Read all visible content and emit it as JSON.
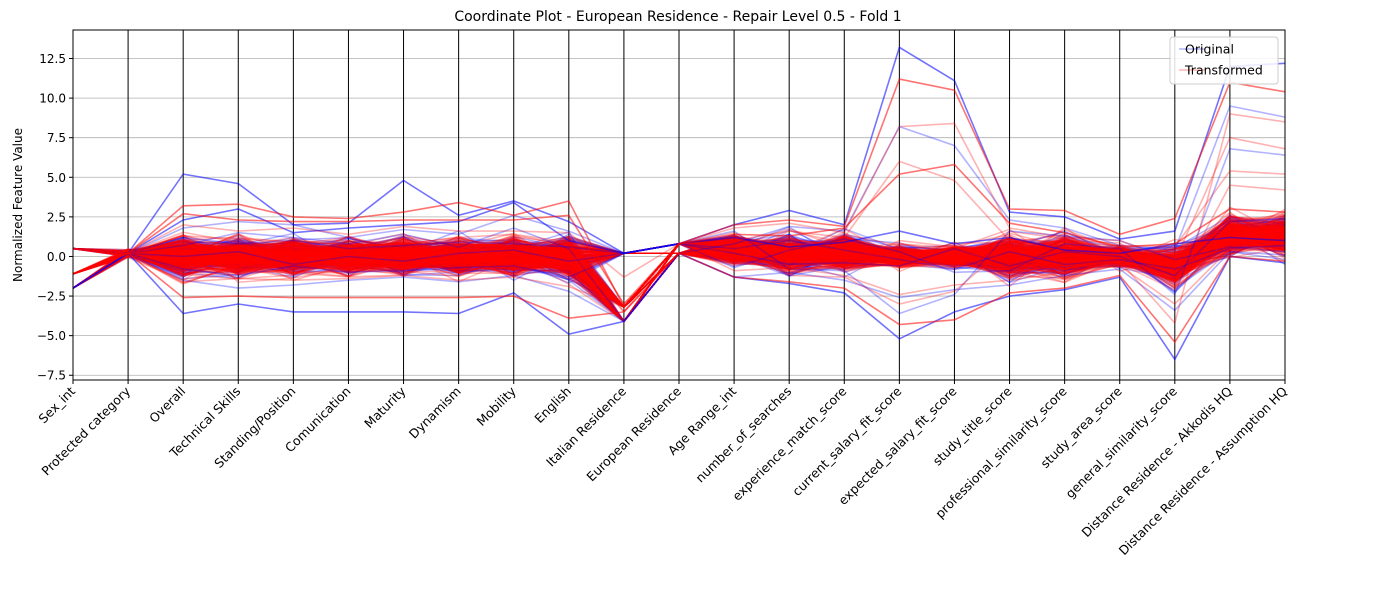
{
  "chart_data": {
    "type": "line",
    "subtype": "parallel-coordinates",
    "title": "Coordinate Plot - European Residence - Repair Level 0.5 - Fold 1",
    "xlabel": "",
    "ylabel": "Normalized Feature Value",
    "ylim": [
      -7.8,
      14.3
    ],
    "yticks": [
      -7.5,
      -5.0,
      -2.5,
      0.0,
      2.5,
      5.0,
      7.5,
      10.0,
      12.5
    ],
    "ytick_labels": [
      "−7.5",
      "−5.0",
      "−2.5",
      "0.0",
      "2.5",
      "5.0",
      "7.5",
      "10.0",
      "12.5"
    ],
    "grid": true,
    "legend_position": "top-right",
    "categories": [
      "Sex_int",
      "Protected category",
      "Overall",
      "Technical Skills",
      "Standing/Position",
      "Comunication",
      "Maturity",
      "Dynamism",
      "Mobility",
      "English",
      "Italian Residence",
      "European Residence",
      "Age Range_int",
      "number_of_searches",
      "experience_match_score",
      "current_salary_fit_score",
      "expected_salary_fit_score",
      "study_title_score",
      "professional_similarity_score",
      "study_area_score",
      "general_similarity_score",
      "Distance Residence - Akkodis HQ",
      "Distance Residence - Assumption HQ"
    ],
    "series": [
      {
        "name": "Original",
        "color": "#0000ff",
        "alpha": 0.3,
        "lines": [
          [
            0.5,
            0.2,
            5.2,
            4.6,
            2.0,
            2.1,
            4.8,
            2.6,
            3.5,
            2.2,
            0.2,
            0.8,
            2.0,
            2.9,
            2.0,
            13.2,
            11.1,
            2.8,
            2.5,
            1.1,
            1.6,
            12.0,
            12.2
          ],
          [
            -2.0,
            0.2,
            -3.6,
            -3.0,
            -3.5,
            -3.5,
            -3.5,
            -3.6,
            -2.3,
            -4.9,
            -4.1,
            0.2,
            -1.3,
            -1.7,
            -2.3,
            -5.2,
            -3.5,
            -2.5,
            -2.1,
            -1.3,
            -6.5,
            0.0,
            -0.4
          ],
          [
            0.5,
            0.2,
            2.3,
            3.0,
            1.5,
            1.8,
            2.0,
            2.2,
            3.4,
            1.0,
            0.2,
            0.8,
            1.2,
            0.6,
            0.9,
            1.6,
            0.8,
            1.2,
            0.4,
            0.2,
            0.8,
            1.2,
            1.0
          ],
          [
            0.5,
            0.2,
            1.2,
            0.8,
            1.0,
            0.5,
            0.7,
            0.9,
            0.8,
            0.6,
            0.2,
            0.8,
            0.5,
            1.0,
            0.4,
            -0.2,
            -0.8,
            0.3,
            -0.5,
            -0.2,
            -0.8,
            0.5,
            0.7
          ],
          [
            -2.0,
            0.2,
            -1.5,
            -2.0,
            -1.8,
            -1.5,
            -1.3,
            -1.6,
            -1.2,
            -2.2,
            -4.1,
            0.2,
            -1.3,
            -1.0,
            -1.5,
            -2.6,
            -2.1,
            -1.8,
            -1.2,
            -0.8,
            -3.4,
            0.3,
            0.1
          ],
          [
            0.5,
            0.2,
            0.0,
            0.3,
            -0.5,
            0.0,
            -0.3,
            0.2,
            0.4,
            -0.3,
            0.2,
            0.8,
            0.2,
            -0.5,
            -0.4,
            -0.6,
            0.5,
            -0.6,
            0.3,
            0.0,
            -1.2,
            2.2,
            2.4
          ],
          [
            -2.0,
            0.2,
            0.7,
            1.5,
            1.2,
            0.8,
            1.4,
            0.6,
            1.8,
            0.5,
            -4.1,
            0.2,
            0.8,
            1.9,
            1.6,
            8.2,
            7.0,
            2.3,
            1.8,
            0.7,
            0.4,
            9.5,
            8.8
          ],
          [
            0.5,
            0.2,
            -0.8,
            -1.2,
            -0.6,
            -1.0,
            -0.9,
            -0.7,
            -0.6,
            -1.3,
            0.2,
            0.8,
            -0.7,
            0.4,
            1.1,
            0.3,
            -1.0,
            -0.9,
            0.8,
            0.5,
            -2.4,
            6.8,
            6.4
          ],
          [
            -2.0,
            0.2,
            1.8,
            2.2,
            2.0,
            1.2,
            1.7,
            1.4,
            2.6,
            1.6,
            0.2,
            0.8,
            1.6,
            -0.8,
            -0.9,
            -3.6,
            -2.4,
            1.6,
            1.3,
            1.0,
            -0.2,
            0.6,
            0.3
          ]
        ]
      },
      {
        "name": "Transformed",
        "color": "#ff0000",
        "alpha": 0.3,
        "lines": [
          [
            0.5,
            0.2,
            3.2,
            3.3,
            2.5,
            2.4,
            2.8,
            3.4,
            2.6,
            3.5,
            -3.2,
            0.8,
            2.0,
            2.3,
            1.9,
            11.2,
            10.5,
            3.0,
            2.9,
            1.4,
            2.4,
            11.0,
            10.4
          ],
          [
            -1.1,
            0.2,
            -2.6,
            -2.5,
            -2.6,
            -2.6,
            -2.6,
            -2.6,
            -2.5,
            -3.9,
            -3.5,
            0.2,
            -1.3,
            -1.6,
            -2.0,
            -4.3,
            -4.0,
            -2.3,
            -2.0,
            -1.2,
            -5.4,
            0.0,
            -0.3
          ],
          [
            0.5,
            0.2,
            2.7,
            2.3,
            2.2,
            2.2,
            2.3,
            2.3,
            2.3,
            2.6,
            -3.0,
            0.8,
            1.4,
            1.3,
            1.8,
            5.2,
            5.8,
            2.1,
            1.5,
            0.6,
            0.8,
            3.0,
            2.8
          ],
          [
            -1.1,
            0.2,
            0.8,
            0.5,
            0.8,
            0.6,
            0.5,
            0.7,
            0.6,
            0.4,
            -3.5,
            0.2,
            0.6,
            0.3,
            0.5,
            -0.3,
            -0.5,
            0.6,
            0.2,
            0.1,
            -1.0,
            1.8,
            1.6
          ],
          [
            0.5,
            0.2,
            -1.6,
            -1.4,
            -1.5,
            -1.4,
            -1.2,
            -1.5,
            -1.3,
            -1.9,
            -3.2,
            0.8,
            -0.9,
            -0.7,
            -1.2,
            -2.4,
            -1.8,
            -1.5,
            -1.0,
            -0.6,
            -3.0,
            0.5,
            0.4
          ],
          [
            -1.1,
            0.2,
            2.0,
            1.6,
            1.8,
            1.4,
            1.9,
            1.6,
            1.6,
            1.5,
            -1.3,
            0.8,
            1.8,
            2.1,
            1.5,
            8.2,
            8.4,
            1.8,
            1.2,
            1.0,
            -0.3,
            7.5,
            6.8
          ],
          [
            0.5,
            0.2,
            -0.4,
            -0.2,
            0.2,
            -0.4,
            0.1,
            -0.3,
            0.3,
            -0.5,
            -3.0,
            0.2,
            0.0,
            -0.8,
            -0.6,
            1.0,
            0.6,
            -0.8,
            0.6,
            0.2,
            -2.0,
            4.5,
            4.2
          ],
          [
            -1.1,
            0.2,
            1.3,
            1.1,
            0.9,
            1.0,
            0.8,
            1.2,
            1.4,
            0.9,
            -3.5,
            0.8,
            1.0,
            1.6,
            1.2,
            6.0,
            4.8,
            1.0,
            0.9,
            0.7,
            0.6,
            5.4,
            5.2
          ],
          [
            0.5,
            0.2,
            0.3,
            0.6,
            -0.4,
            0.3,
            0.4,
            0.0,
            -0.2,
            0.2,
            -3.2,
            0.2,
            0.4,
            -1.2,
            -1.3,
            -3.0,
            -2.2,
            0.8,
            -0.4,
            -0.3,
            -4.2,
            9.0,
            8.5
          ]
        ]
      }
    ]
  }
}
